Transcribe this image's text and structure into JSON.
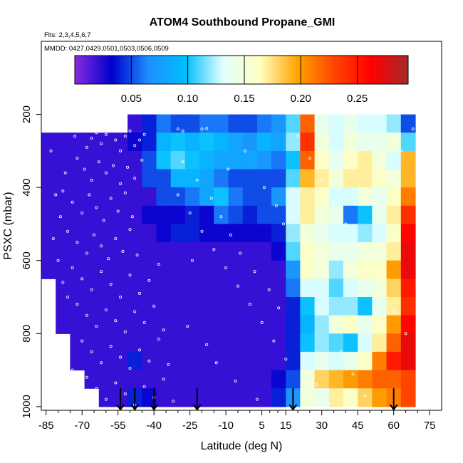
{
  "chart_data": {
    "type": "heatmap",
    "title": "ATOM4 Southbound Propane_GMI",
    "subtitle_flights": "Flts: 2,3,4,5,6,7",
    "subtitle_dates": "MMDD: 0427,0429,0501,0503,0506,0509",
    "xlabel": "Latitude (deg N)",
    "ylabel": "PSXC (mbar)",
    "xlim": [
      -87,
      80
    ],
    "ylim": [
      1010,
      0
    ],
    "x_ticks": [
      -85,
      -70,
      -55,
      -40,
      -25,
      -10,
      5,
      15,
      30,
      45,
      60,
      75
    ],
    "y_ticks": [
      200,
      400,
      600,
      800,
      1000
    ],
    "colorbar": {
      "min": 0.0,
      "max": 0.295,
      "ticks": [
        0.05,
        0.1,
        0.15,
        0.2,
        0.25
      ],
      "tick_labels": [
        "0.05",
        "0.10",
        "0.15",
        "0.20",
        "0.25"
      ],
      "colors": [
        "#8a2be2",
        "#0000cd",
        "#1e90ff",
        "#00bfff",
        "#e0ffff",
        "#ffffc0",
        "#ffa500",
        "#ff4500",
        "#ff0000",
        "#a52a2a"
      ]
    },
    "pressure_levels": [
      225,
      275,
      325,
      375,
      425,
      475,
      525,
      575,
      625,
      675,
      725,
      775,
      825,
      875,
      925,
      975
    ],
    "latitude_bins": [
      -84,
      -78,
      -72,
      -66,
      -60,
      -54,
      -48,
      -42,
      -36,
      -30,
      -24,
      -18,
      -12,
      -6,
      0,
      6,
      12,
      18,
      24,
      30,
      36,
      42,
      48,
      54,
      60,
      66,
      72
    ],
    "propane_grid": [
      [
        null,
        null,
        null,
        null,
        null,
        null,
        0.02,
        0.04,
        0.06,
        0.05,
        0.05,
        0.06,
        0.06,
        0.05,
        0.05,
        0.06,
        0.07,
        0.11,
        0.22,
        0.14,
        0.13,
        0.14,
        0.13,
        0.13,
        0.12,
        0.05,
        null
      ],
      [
        0.02,
        0.02,
        0.02,
        0.02,
        0.02,
        0.02,
        0.03,
        0.04,
        0.09,
        0.1,
        0.09,
        0.1,
        0.09,
        0.08,
        0.07,
        0.09,
        0.08,
        0.12,
        0.24,
        0.15,
        0.13,
        0.15,
        0.14,
        0.14,
        0.15,
        0.11,
        null
      ],
      [
        0.02,
        0.02,
        0.02,
        0.02,
        0.02,
        0.02,
        0.02,
        0.05,
        0.1,
        0.11,
        0.1,
        0.09,
        0.08,
        0.08,
        0.08,
        0.07,
        0.06,
        0.1,
        0.22,
        0.16,
        0.14,
        0.16,
        0.17,
        0.15,
        0.13,
        0.19,
        null
      ],
      [
        0.02,
        0.02,
        0.02,
        0.02,
        0.02,
        0.02,
        0.02,
        0.05,
        0.05,
        0.09,
        0.09,
        0.08,
        0.06,
        0.05,
        0.05,
        0.05,
        0.05,
        0.11,
        0.19,
        0.17,
        0.15,
        0.17,
        0.17,
        0.16,
        0.15,
        0.19,
        null
      ],
      [
        0.02,
        0.02,
        0.02,
        0.02,
        0.02,
        0.02,
        0.02,
        0.02,
        0.05,
        0.05,
        0.06,
        0.08,
        0.1,
        0.06,
        0.05,
        0.05,
        0.07,
        0.13,
        0.17,
        0.16,
        0.13,
        0.13,
        0.15,
        0.14,
        0.16,
        0.21,
        null
      ],
      [
        0.02,
        0.02,
        0.02,
        0.02,
        0.02,
        0.02,
        0.02,
        0.03,
        0.03,
        0.03,
        0.04,
        0.03,
        0.06,
        0.05,
        0.04,
        0.05,
        0.05,
        0.13,
        0.17,
        0.15,
        0.14,
        0.06,
        0.1,
        0.14,
        0.17,
        0.24,
        null
      ],
      [
        0.02,
        0.02,
        0.02,
        0.02,
        0.02,
        0.02,
        0.02,
        0.02,
        0.03,
        0.04,
        0.04,
        0.03,
        0.03,
        0.03,
        0.03,
        0.03,
        0.04,
        0.12,
        0.15,
        0.14,
        0.13,
        0.13,
        0.12,
        0.13,
        0.16,
        0.26,
        null
      ],
      [
        0.02,
        0.02,
        0.02,
        0.02,
        0.02,
        0.02,
        0.02,
        0.02,
        0.02,
        0.02,
        0.02,
        0.02,
        0.02,
        0.02,
        0.02,
        0.02,
        0.03,
        0.11,
        0.16,
        0.15,
        0.14,
        0.14,
        0.15,
        0.15,
        0.17,
        0.27,
        null
      ],
      [
        0.02,
        0.02,
        0.02,
        0.02,
        0.02,
        0.02,
        0.02,
        0.02,
        0.02,
        0.02,
        0.02,
        0.02,
        0.02,
        0.02,
        0.02,
        0.02,
        0.02,
        0.07,
        0.16,
        0.15,
        0.12,
        0.15,
        0.16,
        0.16,
        0.2,
        0.27,
        null
      ],
      [
        null,
        0.02,
        0.02,
        0.02,
        0.02,
        0.02,
        0.02,
        0.02,
        0.02,
        0.02,
        0.02,
        0.02,
        0.02,
        0.02,
        0.02,
        0.02,
        0.02,
        0.06,
        0.13,
        0.13,
        0.11,
        0.13,
        0.14,
        0.15,
        0.18,
        0.25,
        null
      ],
      [
        null,
        0.02,
        0.02,
        0.02,
        0.02,
        0.02,
        0.02,
        0.02,
        0.02,
        0.02,
        0.02,
        0.02,
        0.02,
        0.02,
        0.02,
        0.02,
        0.02,
        0.04,
        0.1,
        0.13,
        0.12,
        0.12,
        0.1,
        0.14,
        0.17,
        0.24,
        null
      ],
      [
        null,
        0.02,
        0.02,
        0.02,
        0.02,
        0.02,
        0.02,
        0.02,
        0.02,
        0.02,
        0.02,
        0.02,
        0.02,
        0.02,
        0.02,
        0.02,
        0.02,
        0.04,
        0.09,
        0.12,
        0.15,
        0.16,
        0.14,
        0.16,
        0.2,
        0.26,
        null
      ],
      [
        null,
        null,
        0.02,
        0.02,
        0.02,
        0.02,
        0.02,
        0.02,
        0.02,
        0.02,
        0.02,
        0.02,
        0.02,
        0.02,
        0.02,
        0.02,
        0.02,
        0.04,
        0.1,
        0.12,
        0.11,
        0.1,
        0.13,
        0.17,
        0.22,
        0.27,
        null
      ],
      [
        null,
        null,
        0.02,
        0.02,
        0.02,
        0.02,
        0.04,
        0.02,
        0.02,
        0.02,
        0.02,
        0.02,
        0.02,
        0.02,
        0.02,
        0.02,
        0.02,
        0.04,
        0.13,
        0.14,
        0.13,
        0.14,
        0.16,
        0.21,
        0.25,
        0.27,
        null
      ],
      [
        null,
        null,
        null,
        0.02,
        0.02,
        0.02,
        0.02,
        0.02,
        0.02,
        0.02,
        0.02,
        0.02,
        0.02,
        0.02,
        0.02,
        0.02,
        0.03,
        0.05,
        0.15,
        0.18,
        0.19,
        0.2,
        0.21,
        0.22,
        0.22,
        0.23,
        null
      ],
      [
        null,
        null,
        null,
        null,
        0.02,
        0.02,
        0.04,
        0.03,
        0.02,
        0.02,
        0.02,
        0.02,
        0.02,
        0.02,
        0.02,
        0.02,
        0.04,
        0.07,
        0.15,
        0.14,
        0.17,
        0.16,
        0.18,
        0.2,
        0.21,
        0.23,
        null
      ]
    ],
    "sample_points": [
      [
        -75,
        240
      ],
      [
        -73,
        260
      ],
      [
        -70,
        245
      ],
      [
        -68,
        290
      ],
      [
        -66,
        265
      ],
      [
        -64,
        250
      ],
      [
        -62,
        280
      ],
      [
        -60,
        255
      ],
      [
        -58,
        240
      ],
      [
        -56,
        270
      ],
      [
        -54,
        300
      ],
      [
        -52,
        260
      ],
      [
        -50,
        245
      ],
      [
        -48,
        285
      ],
      [
        -46,
        270
      ],
      [
        -44,
        255
      ],
      [
        -30,
        240
      ],
      [
        -28,
        245
      ],
      [
        -20,
        240
      ],
      [
        -18,
        238
      ],
      [
        -72,
        320
      ],
      [
        -69,
        350
      ],
      [
        -66,
        380
      ],
      [
        -63,
        330
      ],
      [
        -60,
        360
      ],
      [
        -57,
        340
      ],
      [
        -54,
        390
      ],
      [
        -51,
        345
      ],
      [
        -48,
        375
      ],
      [
        -45,
        325
      ],
      [
        -78,
        410
      ],
      [
        -74,
        440
      ],
      [
        -70,
        470
      ],
      [
        -67,
        420
      ],
      [
        -64,
        455
      ],
      [
        -61,
        490
      ],
      [
        -58,
        430
      ],
      [
        -55,
        465
      ],
      [
        -52,
        415
      ],
      [
        -49,
        480
      ],
      [
        -76,
        520
      ],
      [
        -72,
        550
      ],
      [
        -68,
        580
      ],
      [
        -65,
        530
      ],
      [
        -62,
        560
      ],
      [
        -59,
        595
      ],
      [
        -56,
        540
      ],
      [
        -53,
        575
      ],
      [
        -50,
        515
      ],
      [
        -47,
        585
      ],
      [
        -74,
        620
      ],
      [
        -70,
        650
      ],
      [
        -66,
        680
      ],
      [
        -62,
        630
      ],
      [
        -58,
        665
      ],
      [
        -54,
        700
      ],
      [
        -50,
        640
      ],
      [
        -46,
        690
      ],
      [
        -42,
        655
      ],
      [
        -38,
        610
      ],
      [
        -72,
        720
      ],
      [
        -68,
        750
      ],
      [
        -64,
        780
      ],
      [
        -60,
        735
      ],
      [
        -56,
        765
      ],
      [
        -52,
        795
      ],
      [
        -48,
        740
      ],
      [
        -44,
        770
      ],
      [
        -40,
        725
      ],
      [
        -36,
        790
      ],
      [
        -70,
        820
      ],
      [
        -66,
        850
      ],
      [
        -62,
        880
      ],
      [
        -58,
        835
      ],
      [
        -54,
        865
      ],
      [
        -50,
        895
      ],
      [
        -46,
        845
      ],
      [
        -42,
        875
      ],
      [
        -38,
        815
      ],
      [
        -34,
        885
      ],
      [
        -68,
        920
      ],
      [
        -64,
        950
      ],
      [
        -60,
        980
      ],
      [
        -56,
        935
      ],
      [
        -52,
        965
      ],
      [
        -48,
        995
      ],
      [
        -44,
        945
      ],
      [
        -40,
        975
      ],
      [
        -36,
        925
      ],
      [
        -32,
        985
      ],
      [
        -30,
        420
      ],
      [
        -25,
        470
      ],
      [
        -20,
        520
      ],
      [
        -15,
        570
      ],
      [
        -10,
        620
      ],
      [
        -5,
        670
      ],
      [
        0,
        720
      ],
      [
        5,
        770
      ],
      [
        10,
        820
      ],
      [
        15,
        870
      ],
      [
        -28,
        330
      ],
      [
        -22,
        380
      ],
      [
        -16,
        430
      ],
      [
        -12,
        480
      ],
      [
        -8,
        530
      ],
      [
        -4,
        580
      ],
      [
        2,
        630
      ],
      [
        8,
        680
      ],
      [
        12,
        730
      ],
      [
        -26,
        780
      ],
      [
        -18,
        830
      ],
      [
        -14,
        880
      ],
      [
        -6,
        930
      ],
      [
        3,
        980
      ],
      [
        -24,
        600
      ],
      [
        -9,
        350
      ],
      [
        6,
        400
      ],
      [
        11,
        450
      ],
      [
        14,
        500
      ],
      [
        -2,
        300
      ],
      [
        20,
        260
      ],
      [
        25,
        320
      ],
      [
        30,
        380
      ],
      [
        35,
        440
      ],
      [
        40,
        500
      ],
      [
        45,
        560
      ],
      [
        50,
        620
      ],
      [
        55,
        680
      ],
      [
        60,
        740
      ],
      [
        65,
        800
      ],
      [
        22,
        880
      ],
      [
        28,
        940
      ],
      [
        33,
        990
      ],
      [
        38,
        850
      ],
      [
        43,
        910
      ],
      [
        48,
        970
      ],
      [
        53,
        420
      ],
      [
        58,
        360
      ],
      [
        63,
        300
      ],
      [
        68,
        240
      ],
      [
        -80,
        600
      ],
      [
        -82,
        540
      ],
      [
        -79,
        480
      ],
      [
        -81,
        420
      ],
      [
        -77,
        360
      ],
      [
        -83,
        300
      ],
      [
        -76,
        700
      ],
      [
        -78,
        660
      ],
      [
        -74,
        900
      ],
      [
        -71,
        960
      ]
    ],
    "flight_markers_lat": [
      -54,
      -48,
      -40,
      -22,
      18,
      60
    ],
    "flight_marker_pressure_start": 950
  }
}
